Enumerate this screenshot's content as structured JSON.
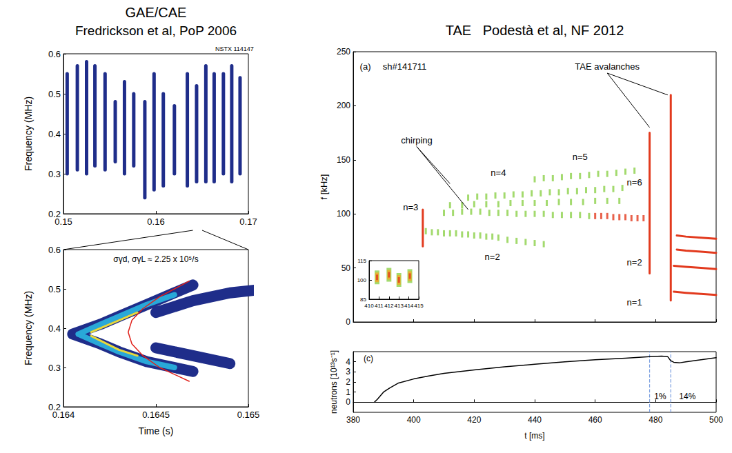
{
  "chart_data": [
    {
      "type": "line",
      "title": "GAE/CAE",
      "subtitle": "Fredrickson et al, PoP 2006",
      "y_label": "Frequency (MHz)",
      "xlim": [
        0.15,
        0.17
      ],
      "xticks": [
        0.15,
        0.16,
        0.17
      ],
      "ylim": [
        0.2,
        0.6
      ],
      "yticks": [
        0.2,
        0.3,
        0.4,
        0.5,
        0.6
      ],
      "grid": false,
      "annotations": [
        {
          "text": "NSTX 114147",
          "x": 0.1685,
          "y": 0.612
        }
      ],
      "series": [
        {
          "color": "#1f2d8a",
          "line_style": "burst",
          "x": [
            0.1504,
            0.1504,
            0.1504,
            0.1515,
            0.1515,
            0.1515,
            0.1525,
            0.1525,
            0.1525,
            0.1534,
            0.1534,
            0.1534,
            0.1545,
            0.1545,
            0.1545,
            0.1556,
            0.1556,
            0.1556,
            0.1566,
            0.1566,
            0.1566,
            0.1576,
            0.1576,
            0.1576,
            0.1588,
            0.1588,
            0.1588,
            0.1598,
            0.1598,
            0.1598,
            0.1608,
            0.1608,
            0.1608,
            0.162,
            0.162,
            0.162,
            0.1634,
            0.1634,
            0.1634,
            0.1644,
            0.1644,
            0.1644,
            0.1654,
            0.1654,
            0.1654,
            0.1663,
            0.1663,
            0.1663,
            0.1673,
            0.1673,
            0.1673,
            0.1682,
            0.1682,
            0.1682,
            0.1691,
            0.1691,
            0.1691
          ],
          "values": [
            0.3,
            0.55,
            null,
            0.31,
            0.57,
            null,
            0.3,
            0.58,
            null,
            0.32,
            0.57,
            null,
            0.31,
            0.55,
            null,
            0.33,
            0.48,
            null,
            0.3,
            0.53,
            null,
            0.32,
            0.5,
            null,
            0.24,
            0.48,
            null,
            0.26,
            0.55,
            null,
            0.27,
            0.5,
            null,
            0.3,
            0.47,
            null,
            0.27,
            0.55,
            null,
            0.28,
            0.52,
            null,
            0.28,
            0.57,
            null,
            0.28,
            0.55,
            null,
            0.3,
            0.55,
            null,
            0.28,
            0.57,
            null,
            0.3,
            0.54,
            null
          ]
        }
      ]
    },
    {
      "type": "line",
      "x_label": "Time (s)",
      "y_label": "Frequency (MHz)",
      "xlim": [
        0.164,
        0.165
      ],
      "xticks": [
        0.164,
        0.1645,
        0.165
      ],
      "ylim": [
        0.2,
        0.6
      ],
      "yticks": [
        0.2,
        0.3,
        0.4,
        0.5,
        0.6
      ],
      "grid": false,
      "annotations": [
        {
          "text": "σγd, σγL ≈ 2.25 x 10⁵/s",
          "x": 0.1645,
          "y": 0.575
        }
      ],
      "series": [
        {
          "color": "#1f2d8a",
          "line_style": "band",
          "x": [
            0.16405,
            0.1642,
            0.1643,
            0.16445,
            0.1646,
            0.1647,
            0.1647,
            0.1645,
            0.1647,
            0.1649,
            0.1651,
            0.16525,
            0.16525,
            0.16405,
            0.1642,
            0.1643,
            0.16445,
            0.1646,
            0.1647,
            0.1647,
            0.1645,
            0.1647,
            0.1649
          ],
          "values": [
            0.385,
            0.41,
            0.43,
            0.46,
            0.49,
            0.51,
            null,
            0.44,
            0.47,
            0.49,
            0.5,
            0.5,
            null,
            0.385,
            0.36,
            0.34,
            0.315,
            0.3,
            0.29,
            null,
            0.35,
            0.33,
            0.31
          ]
        },
        {
          "color": "#29a8d8",
          "line_style": "core",
          "x": [
            0.16408,
            0.1642,
            0.1643,
            0.16445,
            0.1646,
            0.1646,
            0.16408,
            0.1642,
            0.1643,
            0.16445,
            0.1646
          ],
          "values": [
            0.385,
            0.41,
            0.43,
            0.46,
            0.485,
            null,
            0.385,
            0.36,
            0.34,
            0.315,
            0.3
          ]
        },
        {
          "color": "#e8d83a",
          "line_style": "thin",
          "x": [
            0.16415,
            0.1643,
            0.1644,
            0.1644,
            0.16415,
            0.1643,
            0.1644
          ],
          "values": [
            0.39,
            0.42,
            0.44,
            null,
            0.38,
            0.345,
            0.33
          ]
        },
        {
          "color": "#e0201a",
          "line_style": "solid",
          "x": [
            0.16468,
            0.16452,
            0.16443,
            0.16437,
            0.16435,
            0.16437,
            0.16443,
            0.16452,
            0.16468
          ],
          "values": [
            0.52,
            0.48,
            0.45,
            0.42,
            0.39,
            0.36,
            0.33,
            0.3,
            0.265
          ]
        }
      ]
    },
    {
      "type": "scatter",
      "title": "TAE   Podestà et al, NF 2012",
      "y_label": "f [kHz]",
      "xlim": [
        380,
        500
      ],
      "xticks": [
        380,
        400,
        420,
        440,
        460,
        480,
        500
      ],
      "ylim": [
        0,
        250
      ],
      "yticks": [
        0,
        50,
        100,
        150,
        200,
        250
      ],
      "tick_labels": "y",
      "grid": false,
      "annotations": [
        {
          "text": "(a)",
          "x": 384,
          "y": 236
        },
        {
          "text": "sh#141711",
          "x": 397,
          "y": 236
        },
        {
          "text": "chirping",
          "x": 401,
          "y": 168,
          "points_to": [
            [
              412,
              128
            ],
            [
              418,
              104
            ]
          ]
        },
        {
          "text": "TAE avalanches",
          "x": 464,
          "y": 236,
          "points_to": [
            [
              478,
              180
            ],
            [
              484,
              210
            ]
          ]
        },
        {
          "text": "n=3",
          "x": 399,
          "y": 106
        },
        {
          "text": "n=4",
          "x": 428,
          "y": 138
        },
        {
          "text": "n=5",
          "x": 455,
          "y": 153
        },
        {
          "text": "n=2",
          "x": 426,
          "y": 60
        },
        {
          "text": "n=6",
          "x": 473,
          "y": 129
        },
        {
          "text": "n=2",
          "x": 473,
          "y": 55
        },
        {
          "text": "n=1",
          "x": 473,
          "y": 18
        }
      ],
      "series": [
        {
          "color": "#8cd14a",
          "marker": "dash",
          "x": [
            404,
            406,
            408,
            410,
            412,
            414,
            416,
            418,
            420,
            422,
            424,
            426,
            428,
            431,
            434,
            437,
            440,
            443
          ],
          "values": [
            84,
            83,
            83,
            82,
            82,
            82,
            81,
            81,
            80,
            80,
            79,
            79,
            78,
            76,
            75,
            74,
            73,
            72
          ]
        },
        {
          "color": "#8cd14a",
          "marker": "dash",
          "x": [
            410,
            413,
            416,
            419,
            422,
            425,
            428,
            431,
            434,
            437,
            440,
            443,
            446,
            449,
            452,
            455,
            458
          ],
          "values": [
            101,
            101,
            102,
            102,
            102,
            101,
            101,
            101,
            100,
            100,
            100,
            100,
            99,
            99,
            99,
            99,
            98
          ]
        },
        {
          "color": "#8cd14a",
          "marker": "dash",
          "x": [
            412,
            416,
            420,
            424,
            428,
            432,
            436,
            440,
            444,
            448,
            452,
            456,
            460,
            464,
            468
          ],
          "values": [
            108,
            108,
            109,
            109,
            109,
            110,
            110,
            110,
            110,
            111,
            111,
            111,
            112,
            112,
            112
          ]
        },
        {
          "color": "#8cd14a",
          "marker": "dash",
          "x": [
            418,
            421,
            424,
            427,
            430,
            433,
            436,
            439,
            442,
            445,
            448,
            451,
            454,
            457,
            460,
            463,
            466,
            469
          ],
          "values": [
            115,
            116,
            116,
            117,
            117,
            118,
            118,
            119,
            119,
            120,
            120,
            121,
            121,
            122,
            122,
            123,
            123,
            124
          ]
        },
        {
          "color": "#8cd14a",
          "marker": "dash",
          "x": [
            440,
            443,
            446,
            449,
            452,
            455,
            458,
            461,
            464,
            467,
            470,
            473
          ],
          "values": [
            132,
            133,
            133,
            134,
            135,
            135,
            136,
            137,
            137,
            138,
            139,
            140
          ]
        },
        {
          "color": "#e23a1e",
          "marker": "dash",
          "x": [
            460,
            462,
            464,
            466,
            468,
            470,
            472,
            474,
            476
          ],
          "values": [
            98,
            98,
            98,
            97,
            97,
            97,
            96,
            96,
            96
          ]
        },
        {
          "type": "line",
          "color": "#e23a1e",
          "line_style": "bold",
          "x": [
            403,
            403,
            403,
            478,
            478,
            478,
            485,
            485
          ],
          "values": [
            70,
            104,
            null,
            45,
            175,
            null,
            20,
            210
          ]
        },
        {
          "type": "line",
          "color": "#e23a1e",
          "line_style": "bold",
          "x": [
            486,
            490,
            495,
            500,
            500,
            486,
            490,
            495,
            500,
            500,
            487,
            490,
            495,
            500,
            500,
            487,
            490,
            495,
            500
          ],
          "values": [
            28,
            27,
            26,
            25,
            null,
            52,
            51,
            50,
            49,
            null,
            67,
            66,
            65,
            64,
            null,
            80,
            79,
            78,
            77
          ]
        }
      ]
    },
    {
      "type": "scatter",
      "xlim": [
        410,
        415
      ],
      "xticks": [
        410,
        411,
        412,
        413,
        414,
        415
      ],
      "ylim": [
        85,
        115
      ],
      "yticks": [
        85,
        100,
        115
      ],
      "grid": false,
      "series": [
        {
          "color": "#8cd14a",
          "marker": "block",
          "x": [
            410.8,
            412,
            413,
            414.1
          ],
          "values": [
            102,
            104,
            100,
            103
          ]
        },
        {
          "color": "#f5a623",
          "marker": "mid",
          "x": [
            410.8,
            412,
            413,
            414.1
          ],
          "values": [
            102,
            104,
            100,
            103
          ]
        },
        {
          "color": "#e23a1e",
          "marker": "spot",
          "x": [
            410.8,
            412,
            413,
            414.1
          ],
          "values": [
            102,
            104,
            100,
            103
          ]
        }
      ]
    },
    {
      "type": "line",
      "x_label": "t [ms]",
      "y_label": "neutrons [10¹³s⁻¹]",
      "xlim": [
        380,
        500
      ],
      "xticks": [
        380,
        400,
        420,
        440,
        460,
        480,
        500
      ],
      "ylim": [
        -1,
        5
      ],
      "yticks": [
        0,
        1,
        2,
        3,
        4
      ],
      "grid": false,
      "vlines": [
        478,
        485
      ],
      "annotations": [
        {
          "text": "(c)",
          "x": 385,
          "y": 4.3
        },
        {
          "text": "1%",
          "x": 481.5,
          "y": 0.6
        },
        {
          "text": "14%",
          "x": 490.5,
          "y": 0.6
        }
      ],
      "series": [
        {
          "color": "#000000",
          "line_style": "solid",
          "x": [
            387,
            388,
            390,
            392,
            395,
            400,
            405,
            410,
            420,
            430,
            440,
            450,
            460,
            470,
            478,
            482,
            484,
            485,
            486,
            488,
            490,
            495,
            500
          ],
          "values": [
            0,
            0.3,
            1.0,
            1.4,
            1.9,
            2.3,
            2.6,
            2.85,
            3.2,
            3.5,
            3.75,
            4.0,
            4.2,
            4.35,
            4.5,
            4.55,
            4.5,
            4.1,
            3.95,
            3.9,
            4.0,
            4.2,
            4.4
          ]
        }
      ]
    }
  ]
}
